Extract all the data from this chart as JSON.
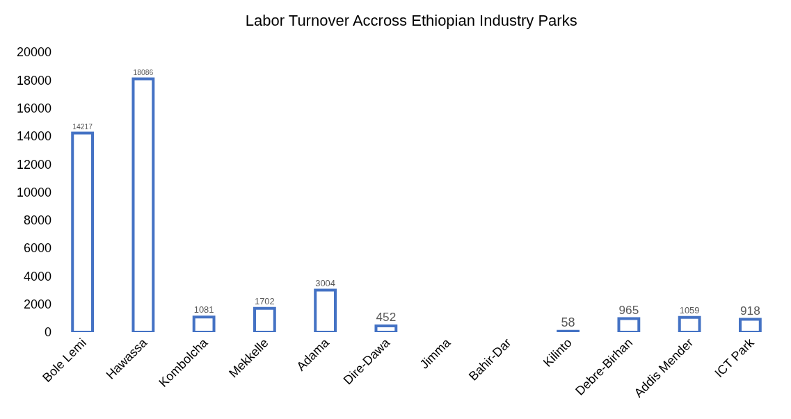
{
  "chart_data": {
    "type": "bar",
    "title": "Labor Turnover Accross Ethiopian Industry Parks",
    "categories": [
      "Bole Lemi",
      "Hawassa",
      "Kombolcha",
      "Mekkelle",
      "Adama",
      "Dire-Dawa",
      "Jimma",
      "Bahir-Dar",
      "Kilinto",
      "Debre-Birhan",
      "Addis Mender",
      "ICT Park"
    ],
    "values": [
      14217,
      18086,
      1081,
      1702,
      3004,
      452,
      null,
      null,
      58,
      965,
      1059,
      918
    ],
    "color": "#4472c4",
    "ylim": [
      0,
      20000
    ],
    "yticks": [
      0,
      2000,
      4000,
      6000,
      8000,
      10000,
      12000,
      14000,
      16000,
      18000,
      20000
    ],
    "grid": false,
    "data_labels": true
  }
}
